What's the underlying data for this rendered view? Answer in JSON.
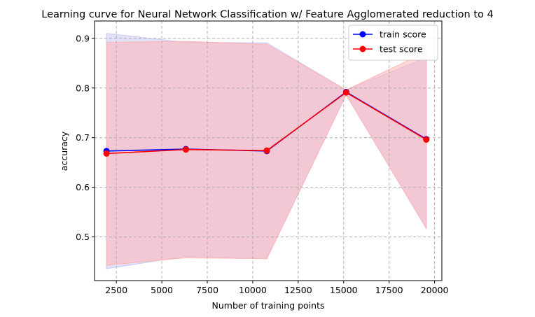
{
  "chart_data": {
    "type": "line",
    "title": "Learning curve for Neural Network Classification w/ Feature Agglomerated reduction to 4",
    "xlabel": "Number of training points",
    "ylabel": "accuracy",
    "xlim": [
      1300,
      20400
    ],
    "ylim": [
      0.412,
      0.935
    ],
    "xticks": [
      2500,
      5000,
      7500,
      10000,
      12500,
      15000,
      17500,
      20000
    ],
    "yticks": [
      0.5,
      0.6,
      0.7,
      0.8,
      0.9
    ],
    "grid": true,
    "legend_position": "top-right",
    "x": [
      1957,
      6322,
      10772,
      15137,
      19544
    ],
    "series": [
      {
        "name": "train score",
        "color": "#0000ff",
        "values": [
          0.673,
          0.677,
          0.673,
          0.792,
          0.697
        ],
        "band_upper": [
          0.91,
          0.892,
          0.891,
          0.796,
          0.861
        ],
        "band_lower": [
          0.436,
          0.461,
          0.456,
          0.787,
          0.517
        ],
        "band_color": "#c8c8f5"
      },
      {
        "name": "test score",
        "color": "#ff0000",
        "values": [
          0.668,
          0.676,
          0.674,
          0.791,
          0.696
        ],
        "band_upper": [
          0.892,
          0.894,
          0.888,
          0.796,
          0.873
        ],
        "band_lower": [
          0.443,
          0.458,
          0.456,
          0.786,
          0.518
        ],
        "band_color": "#ffb4b4"
      }
    ]
  }
}
